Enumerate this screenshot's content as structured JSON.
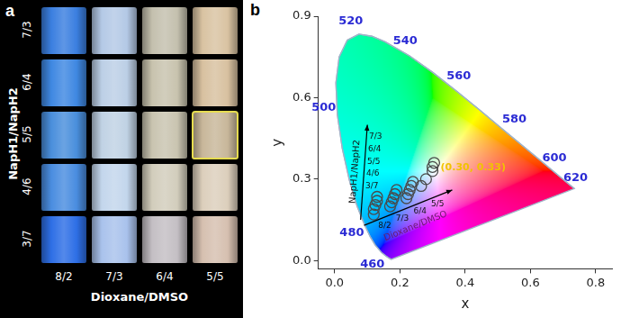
{
  "photo": {
    "panel_label": "a",
    "row_axis_label": "NapH1/NapH2",
    "column_axis_label": "Dioxane/DMSO",
    "rows": [
      "7/3",
      "6/4",
      "5/5",
      "4/6",
      "3/7"
    ],
    "columns": [
      "8/2",
      "7/3",
      "6/4",
      "5/5"
    ],
    "colors": [
      [
        "#3b7fe0",
        "#b4c9e6",
        "#c4c0ae",
        "#d9c3a2"
      ],
      [
        "#3f88e2",
        "#bccfe6",
        "#c8c3ae",
        "#d8c1a0"
      ],
      [
        "#4a8fdc",
        "#c0d2e4",
        "#c9c4b0",
        "#c8b79a"
      ],
      [
        "#4a8de0",
        "#c3d6ec",
        "#d2cdbc",
        "#dccfbc"
      ],
      [
        "#2e6fe6",
        "#a9c2ec",
        "#c4bfc4",
        "#d6c0b0"
      ]
    ],
    "highlight": [
      "5/5",
      "5/5"
    ]
  },
  "chart_data": {
    "panel_label": "b",
    "type": "scatter",
    "xlabel": "x",
    "ylabel": "y",
    "xlim": [
      -0.05,
      0.85
    ],
    "ylim": [
      -0.03,
      0.9
    ],
    "xticks": [
      {
        "value": 0,
        "label": "0.0"
      },
      0.2,
      0.4,
      0.6,
      0.8
    ],
    "yticks": [
      {
        "value": 0,
        "label": "0.0"
      },
      0.3,
      0.6,
      0.9
    ],
    "grid": false,
    "series": [
      {
        "type": "line",
        "color": "#9fb3c8",
        "x": [
          0.1733,
          0.1644,
          0.1566,
          0.144,
          0.1241,
          0.1096,
          0.0913,
          0.0687,
          0.0454,
          0.0235,
          0.0082,
          0.0039,
          0.0139,
          0.0389,
          0.0743,
          0.1142,
          0.1547,
          0.2296,
          0.3016,
          0.3731,
          0.4441,
          0.5125,
          0.5752,
          0.627,
          0.6658,
          0.6915,
          0.719,
          0.7347
        ],
        "y": [
          0.0048,
          0.0109,
          0.0177,
          0.0297,
          0.0578,
          0.0868,
          0.1327,
          0.2007,
          0.295,
          0.4127,
          0.5384,
          0.6548,
          0.7502,
          0.812,
          0.8338,
          0.8262,
          0.8059,
          0.7543,
          0.6923,
          0.6245,
          0.5547,
          0.4866,
          0.4242,
          0.3725,
          0.334,
          0.3083,
          0.2809,
          0.2653
        ],
        "labels": [
          null,
          null,
          null,
          460,
          null,
          null,
          480,
          null,
          null,
          null,
          500,
          null,
          null,
          null,
          520,
          null,
          null,
          540,
          null,
          560,
          null,
          580,
          null,
          600,
          null,
          620,
          null,
          null
        ]
      },
      {
        "type": "scatter",
        "marker": "circle",
        "color": "#4a4a4a",
        "x": [
          0.12,
          0.12,
          0.125,
          0.13,
          0.13,
          0.17,
          0.175,
          0.18,
          0.185,
          0.19,
          0.22,
          0.225,
          0.23,
          0.235,
          0.24,
          0.265,
          0.28,
          0.3,
          0.3,
          0.305
        ],
        "y": [
          0.17,
          0.19,
          0.205,
          0.22,
          0.235,
          0.2,
          0.215,
          0.23,
          0.245,
          0.26,
          0.23,
          0.245,
          0.26,
          0.275,
          0.29,
          0.275,
          0.3,
          0.33,
          0.345,
          0.36
        ]
      }
    ],
    "annotations": [
      {
        "text": "(0.30, 0.33)",
        "x": 0.3,
        "y": 0.33,
        "color": "#f0c400"
      }
    ],
    "arrows": [
      {
        "label": "NapH1/NapH2",
        "ticks": [
          "7/3",
          "6/4",
          "5/5",
          "4/6",
          "3/7"
        ]
      },
      {
        "label": "Dioxane/DMSO",
        "ticks": [
          "8/2",
          "7/3",
          "6/4",
          "5/5"
        ]
      }
    ]
  }
}
